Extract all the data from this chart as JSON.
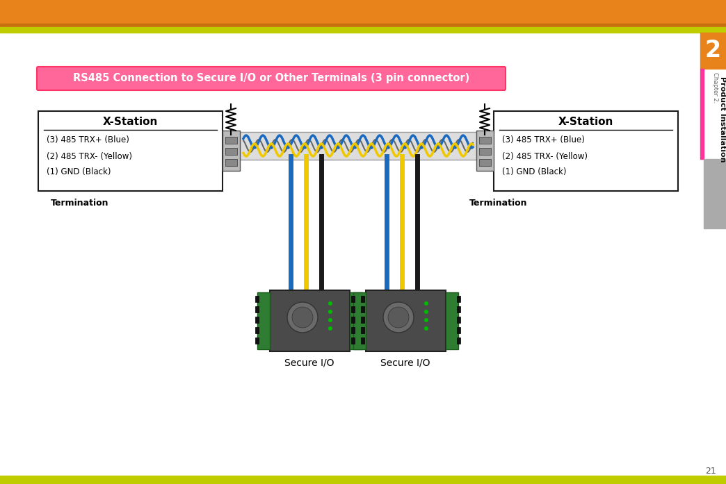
{
  "title": "RS485 Connection to Secure I/O or Other Terminals (3 pin connector)",
  "title_bg": "#FF6699",
  "title_color": "white",
  "title_border": "#FF3366",
  "bg_color": "white",
  "header_orange": "#E8821A",
  "header_dark_orange": "#C87010",
  "header_stripe": "#BFCC00",
  "sidebar_orange": "#E8821A",
  "sidebar_pink": "#FF3399",
  "sidebar_gray": "#AAAAAA",
  "sidebar_number": "2",
  "sidebar_chapter": "Chapter 2.",
  "sidebar_product": "Product Installation",
  "page_number": "21",
  "left_box_title": "X-Station",
  "left_box_lines": [
    "(3) 485 TRX+ (Blue)",
    "(2) 485 TRX- (Yellow)",
    "(1) GND (Black)"
  ],
  "right_box_title": "X-Station",
  "right_box_lines": [
    "(3) 485 TRX+ (Blue)",
    "(2) 485 TRX- (Yellow)",
    "(1) GND (Black)"
  ],
  "left_termination": "Termination",
  "right_termination": "Termination",
  "left_device_label": "Secure I/O",
  "right_device_label": "Secure I/O",
  "wire_blue": "#1A6BBF",
  "wire_yellow": "#F0C800",
  "wire_black": "#1A1A1A",
  "cable_bg": "#CCCCCC",
  "box_border": "#1A1A1A",
  "connector_color": "#BBBBBB"
}
